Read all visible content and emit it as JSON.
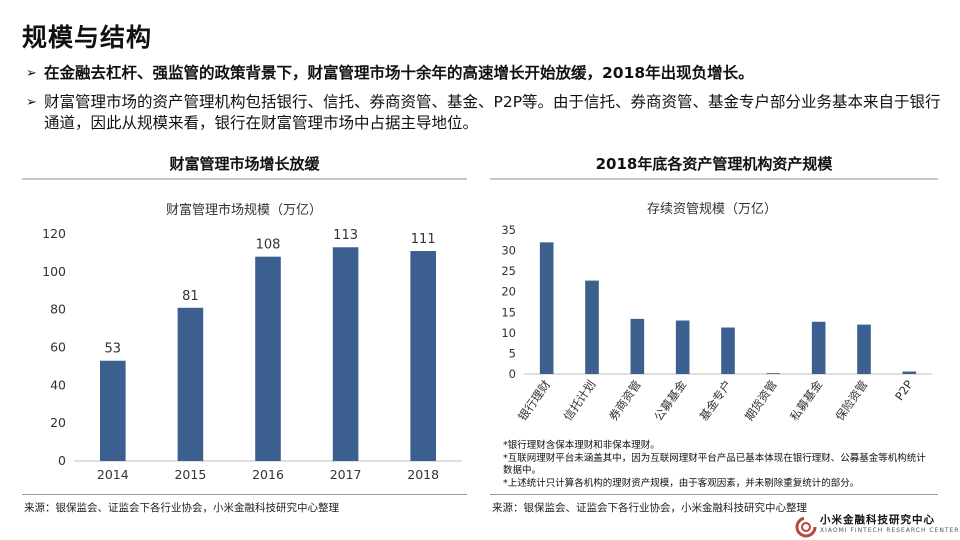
{
  "page": {
    "title": "规模与结构",
    "bullets": [
      "在金融去杠杆、强监管的政策背景下，财富管理市场十余年的高速增长开始放缓，2018年出现负增长。",
      "财富管理市场的资产管理机构包括银行、信托、券商资管、基金、P2P等。由于信托、券商资管、基金专户部分业务基本来自于银行通道，因此从规模来看，银行在财富管理市场中占据主导地位。"
    ],
    "bullet_marker": "➢",
    "left_source": "来源：银保监会、证监会下各行业协会，小米金融科技研究中心整理",
    "right_source": "来源：银保监会、证监会下各行业协会，小米金融科技研究中心整理",
    "notes": [
      "*银行理财含保本理财和非保本理财。",
      "*互联网理财平台未涵盖其中，因为互联网理财平台产品已基本体现在银行理财、公募基金等机构统计数据中。",
      "*上述统计只计算各机构的理财资产规模，由于客观因素，并未剔除重复统计的部分。"
    ],
    "logo_text": "小米金融科技研究中心",
    "logo_sub": "XIAOMI FINTECH RESEARCH CENTER",
    "bar_color": "#3b5f8f"
  },
  "chart_data": [
    {
      "type": "bar",
      "title": "财富管理市场增长放缓",
      "subtitle": "财富管理市场规模（万亿）",
      "categories": [
        "2014",
        "2015",
        "2016",
        "2017",
        "2018"
      ],
      "values": [
        53,
        81,
        108,
        113,
        111
      ],
      "data_labels": true,
      "ylim": [
        0,
        120
      ],
      "yticks": [
        0,
        20,
        40,
        60,
        80,
        100,
        120
      ],
      "grid": false
    },
    {
      "type": "bar",
      "title": "2018年底各资产管理机构资产规模",
      "subtitle": "存续资管规模（万亿）",
      "categories": [
        "银行理财",
        "信托计划",
        "券商资管",
        "公募基金",
        "基金专户",
        "期货资管",
        "私募基金",
        "保险资管",
        "P2P"
      ],
      "values": [
        32,
        22.7,
        13.4,
        13,
        11.3,
        0.2,
        12.7,
        12,
        0.6
      ],
      "data_labels": false,
      "ylim": [
        0,
        35
      ],
      "yticks": [
        0,
        5,
        10,
        15,
        20,
        25,
        30,
        35
      ],
      "grid": false
    }
  ]
}
